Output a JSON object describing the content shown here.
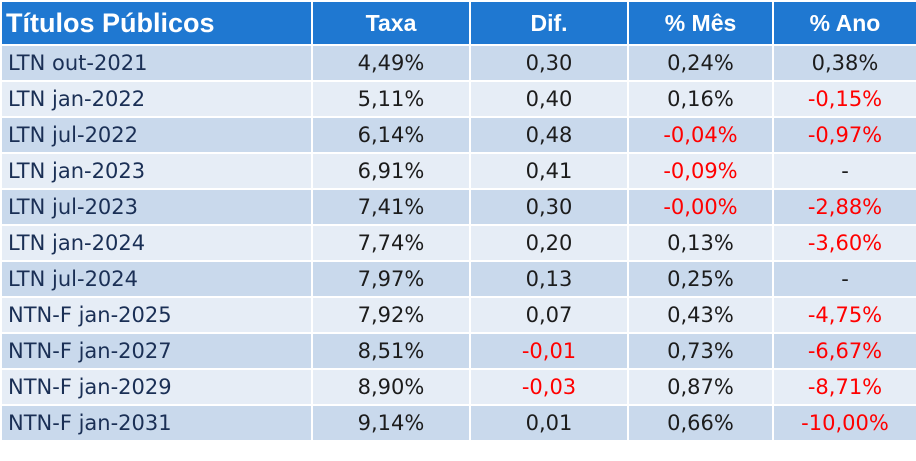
{
  "header": {
    "col_title": "Títulos Públicos",
    "col_taxa": "Taxa",
    "col_dif": "Dif.",
    "col_mes": "% Mês",
    "col_ano": "% Ano"
  },
  "colors": {
    "header_bg": "#1f78d1",
    "row_odd": "#c9d9ec",
    "row_even": "#e6edf6",
    "negative": "#ff0000"
  },
  "rows": [
    {
      "name": "LTN out-2021",
      "taxa": "4,49%",
      "dif": "0,30",
      "mes": "0,24%",
      "ano": "0,38%"
    },
    {
      "name": "LTN jan-2022",
      "taxa": "5,11%",
      "dif": "0,40",
      "mes": "0,16%",
      "ano": "-0,15%"
    },
    {
      "name": "LTN jul-2022",
      "taxa": "6,14%",
      "dif": "0,48",
      "mes": "-0,04%",
      "ano": "-0,97%"
    },
    {
      "name": "LTN jan-2023",
      "taxa": "6,91%",
      "dif": "0,41",
      "mes": "-0,09%",
      "ano": "-"
    },
    {
      "name": "LTN jul-2023",
      "taxa": "7,41%",
      "dif": "0,30",
      "mes": "-0,00%",
      "ano": "-2,88%"
    },
    {
      "name": "LTN jan-2024",
      "taxa": "7,74%",
      "dif": "0,20",
      "mes": "0,13%",
      "ano": "-3,60%"
    },
    {
      "name": "LTN jul-2024",
      "taxa": "7,97%",
      "dif": "0,13",
      "mes": "0,25%",
      "ano": "-"
    },
    {
      "name": "NTN-F jan-2025",
      "taxa": "7,92%",
      "dif": "0,07",
      "mes": "0,43%",
      "ano": "-4,75%"
    },
    {
      "name": "NTN-F jan-2027",
      "taxa": "8,51%",
      "dif": "-0,01",
      "mes": "0,73%",
      "ano": "-6,67%"
    },
    {
      "name": "NTN-F jan-2029",
      "taxa": "8,90%",
      "dif": "-0,03",
      "mes": "0,87%",
      "ano": "-8,71%"
    },
    {
      "name": "NTN-F jan-2031",
      "taxa": "9,14%",
      "dif": "0,01",
      "mes": "0,66%",
      "ano": "-10,00%"
    }
  ]
}
